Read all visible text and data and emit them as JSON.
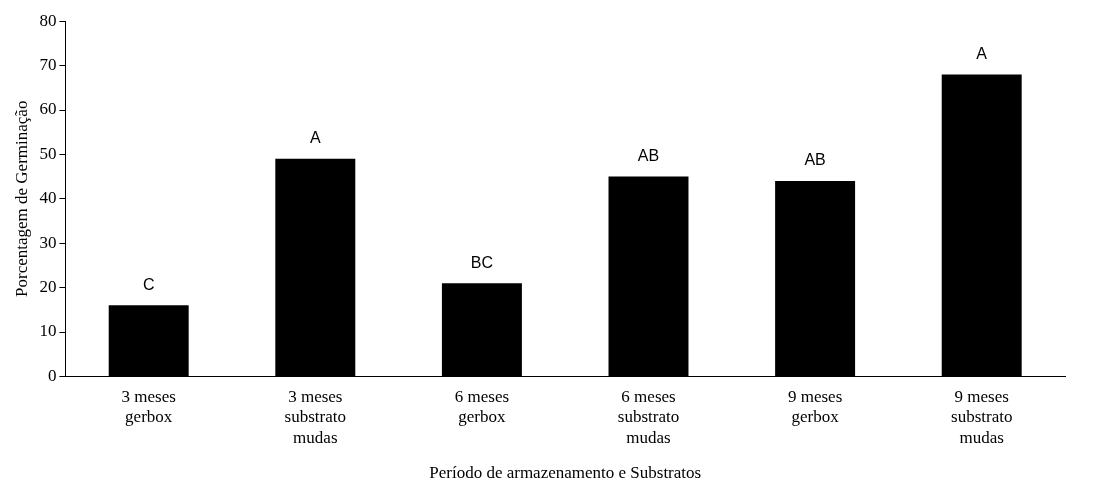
{
  "chart_data": {
    "type": "bar",
    "xlabel": "Período de armazenamento e Substratos",
    "ylabel": "Porcentagem de Germinação",
    "categories": [
      "3 meses\ngerbox",
      "3 meses\nsubstrato\nmudas",
      "6 meses\ngerbox",
      "6 meses\nsubstrato\nmudas",
      "9 meses\ngerbox",
      "9 meses\nsubstrato\nmudas"
    ],
    "values": [
      16,
      49,
      21,
      45,
      44,
      68
    ],
    "color": "#000000",
    "ylim": [
      0,
      80
    ],
    "yticks": [
      0,
      10,
      20,
      30,
      40,
      50,
      60,
      70,
      80
    ],
    "grid": false,
    "legend": false,
    "annotations": [
      {
        "text": "C",
        "x": "3 meses\ngerbox",
        "y": 16
      },
      {
        "text": "A",
        "x": "3 meses\nsubstrato\nmudas",
        "y": 49
      },
      {
        "text": "BC",
        "x": "6 meses\ngerbox",
        "y": 21
      },
      {
        "text": "AB",
        "x": "6 meses\nsubstrato\nmudas",
        "y": 45
      },
      {
        "text": "AB",
        "x": "9 meses\ngerbox",
        "y": 44
      },
      {
        "text": "A",
        "x": "9 meses\nsubstrato\nmudas",
        "y": 68
      }
    ]
  }
}
